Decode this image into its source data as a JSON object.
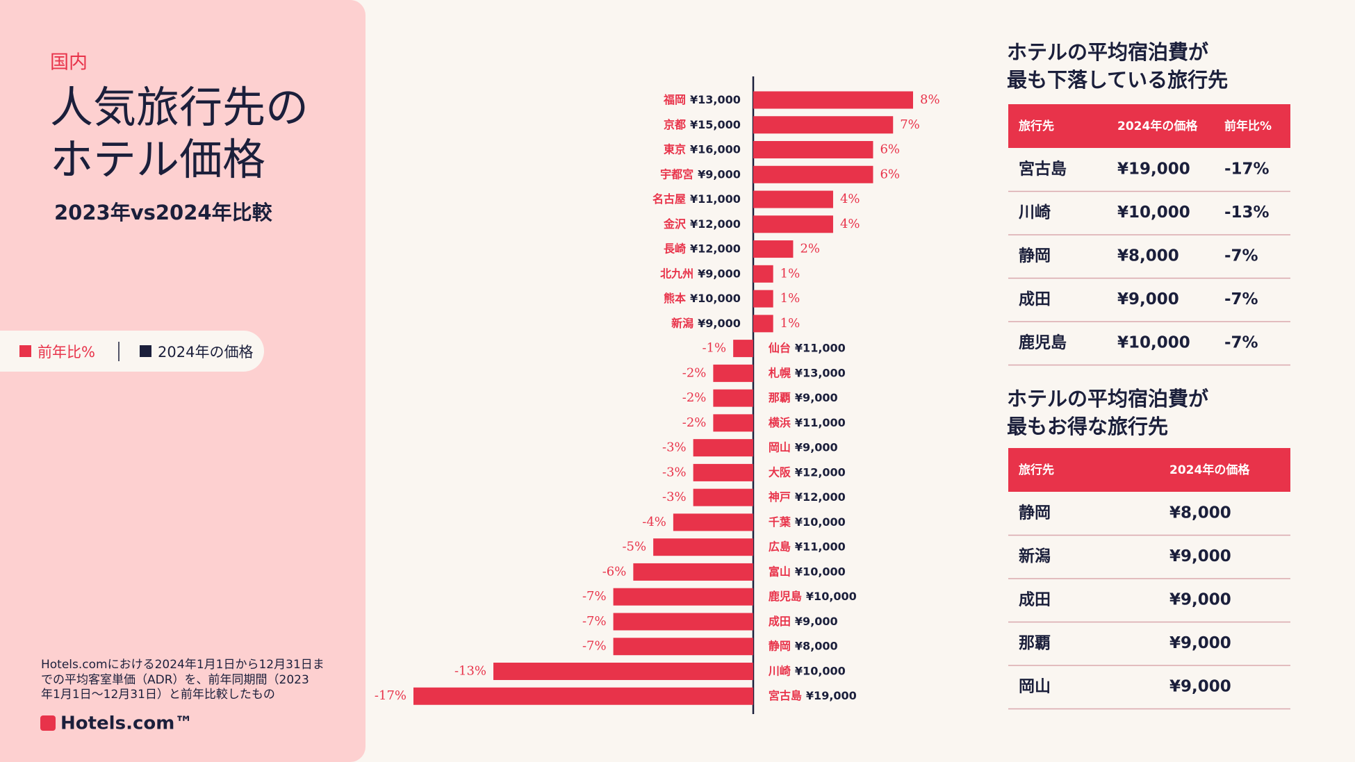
{
  "header": {
    "category": "国内",
    "title": [
      "人気旅行先の",
      "ホテル価格"
    ],
    "subtitle": "2023年vs2024年比較"
  },
  "chart_data": {
    "type": "bar",
    "orientation": "horizontal",
    "categories": [
      "福岡",
      "京都",
      "東京",
      "宇都宮",
      "名古屋",
      "金沢",
      "長崎",
      "北九州",
      "熊本",
      "新潟",
      "仙台",
      "札幌",
      "那覇",
      "横浜",
      "岡山",
      "大阪",
      "神戸",
      "千葉",
      "広島",
      "富山",
      "鹿児島",
      "成田",
      "静岡",
      "川崎",
      "宮古島"
    ],
    "prices": [
      "¥13,000",
      "¥15,000",
      "¥16,000",
      "¥9,000",
      "¥11,000",
      "¥12,000",
      "¥12,000",
      "¥9,000",
      "¥10,000",
      "¥9,000",
      "¥11,000",
      "¥13,000",
      "¥9,000",
      "¥11,000",
      "¥9,000",
      "¥12,000",
      "¥12,000",
      "¥10,000",
      "¥11,000",
      "¥10,000",
      "¥10,000",
      "¥9,000",
      "¥8,000",
      "¥10,000",
      "¥19,000"
    ],
    "series": [
      {
        "name": "前年比%",
        "color": "#e8334a",
        "values": [
          8,
          7,
          6,
          6,
          4,
          4,
          2,
          1,
          1,
          1,
          -1,
          -2,
          -2,
          -2,
          -3,
          -3,
          -3,
          -4,
          -5,
          -6,
          -7,
          -7,
          -7,
          -13,
          -17
        ],
        "value_labels": [
          "8%",
          "7%",
          "6%",
          "6%",
          "4%",
          "4%",
          "2%",
          "1%",
          "1%",
          "1%",
          "-1%",
          "-2%",
          "-2%",
          "-2%",
          "-3%",
          "-3%",
          "-3%",
          "-4%",
          "-5%",
          "-6%",
          "-7%",
          "-7%",
          "-7%",
          "-13%",
          "-17%"
        ]
      }
    ],
    "price_legend": {
      "name": "2024年の価格",
      "color": "#1b1f3b"
    },
    "xlim": [
      -17,
      8
    ]
  },
  "footnote": [
    "Hotels.comにおける2024年1月1日から12月31日ま",
    "での平均客室単価（ADR）を、前年同期間（2023",
    "年1月1日～12月31日）と前年比較したもの"
  ],
  "logo": "Hotels.com™",
  "tables": [
    {
      "title": [
        "ホテルの平均宿泊費が",
        "最も下落している旅行先"
      ],
      "columns": [
        "旅行先",
        "2024年の価格",
        "前年比%"
      ],
      "rows": [
        [
          "宮古島",
          "¥19,000",
          "-17%"
        ],
        [
          "川崎",
          "¥10,000",
          "-13%"
        ],
        [
          "静岡",
          "¥8,000",
          "-7%"
        ],
        [
          "成田",
          "¥9,000",
          "-7%"
        ],
        [
          "鹿児島",
          "¥10,000",
          "-7%"
        ]
      ]
    },
    {
      "title": [
        "ホテルの平均宿泊費が",
        "最もお得な旅行先"
      ],
      "columns": [
        "旅行先",
        "2024年の価格"
      ],
      "rows": [
        [
          "静岡",
          "¥8,000"
        ],
        [
          "新潟",
          "¥9,000"
        ],
        [
          "成田",
          "¥9,000"
        ],
        [
          "那覇",
          "¥9,000"
        ],
        [
          "岡山",
          "¥9,000"
        ]
      ]
    }
  ]
}
